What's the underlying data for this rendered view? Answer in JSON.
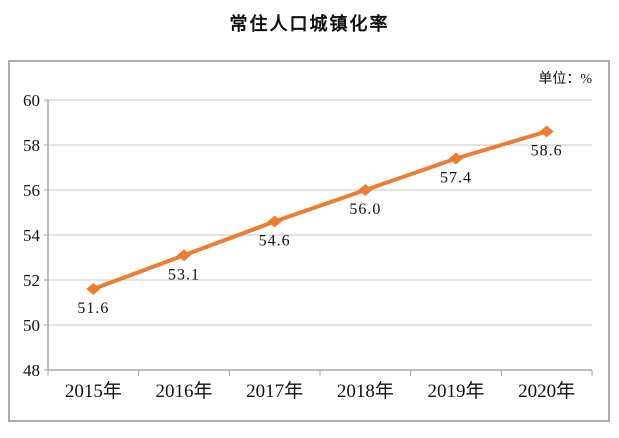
{
  "chart": {
    "title": "常住人口城镇化率",
    "unit_label": "单位：%"
  },
  "chart_data": {
    "type": "line",
    "title": "常住人口城镇化率",
    "unit": "单位：%",
    "categories": [
      "2015年",
      "2016年",
      "2017年",
      "2018年",
      "2019年",
      "2020年"
    ],
    "series": [
      {
        "name": "常住人口城镇化率",
        "values": [
          51.6,
          53.1,
          54.6,
          56.0,
          57.4,
          58.6
        ]
      }
    ],
    "data_labels": [
      "51.6",
      "53.1",
      "54.6",
      "56.0",
      "57.4",
      "58.6"
    ],
    "ylim": [
      48,
      60
    ],
    "yticks": [
      60,
      58,
      56,
      54,
      52,
      50,
      48
    ],
    "xlabel": "",
    "ylabel": "",
    "grid": true,
    "legend_position": "none",
    "colors": {
      "line": "#ED7D31",
      "marker": "#ED7D31",
      "gridline": "#c9c9c9",
      "axis": "#a6a6a6",
      "border": "#ababab",
      "text": "#111111"
    },
    "marker": "diamond"
  }
}
